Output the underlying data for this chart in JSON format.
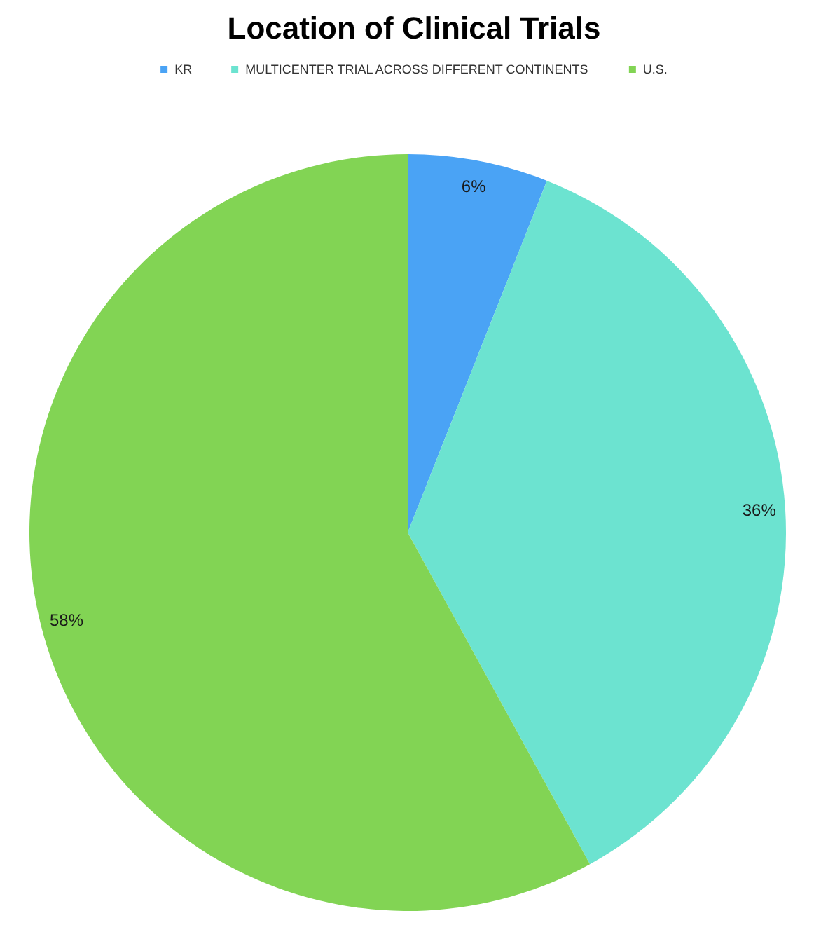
{
  "chart_data": {
    "type": "pie",
    "title": "Location of Clinical Trials",
    "categories": [
      "KR",
      "MULTICENTER TRIAL ACROSS DIFFERENT CONTINENTS",
      "U.S."
    ],
    "values": [
      6,
      36,
      58
    ],
    "colors": [
      "#4aa3f5",
      "#6ce3d0",
      "#82d454"
    ],
    "value_labels": [
      "6%",
      "36%",
      "58%"
    ],
    "legend": "top"
  }
}
